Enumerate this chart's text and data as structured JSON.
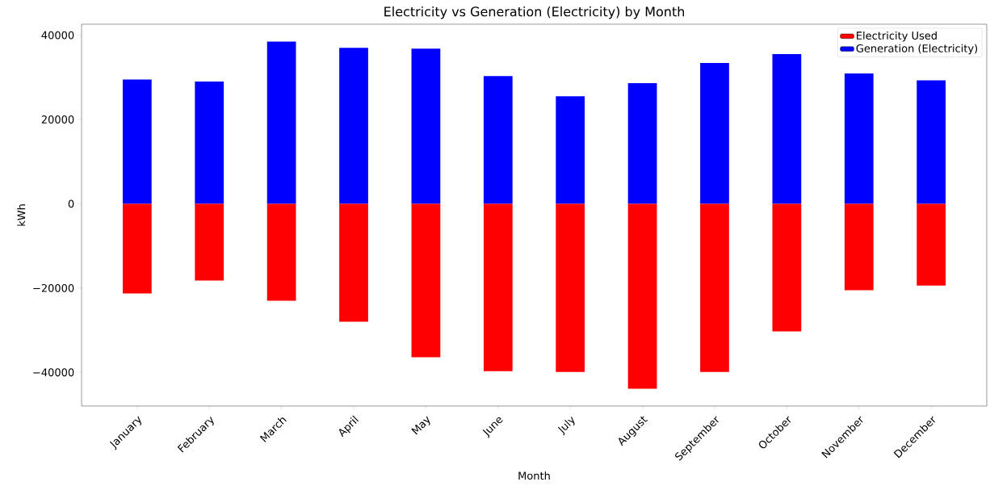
{
  "chart_data": {
    "type": "bar",
    "title": "Electricity vs Generation (Electricity) by Month",
    "xlabel": "Month",
    "ylabel": "kWh",
    "categories": [
      "January",
      "February",
      "March",
      "April",
      "May",
      "June",
      "July",
      "August",
      "September",
      "October",
      "November",
      "December"
    ],
    "series": [
      {
        "name": "Electricity Used",
        "color": "#ff0000",
        "values": [
          -21300,
          -18200,
          -23000,
          -28000,
          -36400,
          -39700,
          -39900,
          -43900,
          -39900,
          -30300,
          -20500,
          -19400
        ]
      },
      {
        "name": "Generation (Electricity)",
        "color": "#0000ff",
        "values": [
          29500,
          29000,
          38500,
          37000,
          36800,
          30300,
          25500,
          28600,
          33400,
          35500,
          30900,
          29300
        ]
      }
    ],
    "ylim": [
      -48000,
      42600
    ],
    "yticks": [
      {
        "value": -40000,
        "label": "−40000"
      },
      {
        "value": -20000,
        "label": "−20000"
      },
      0,
      20000,
      40000
    ],
    "stacked": true,
    "grid": false,
    "legend": "top right"
  }
}
